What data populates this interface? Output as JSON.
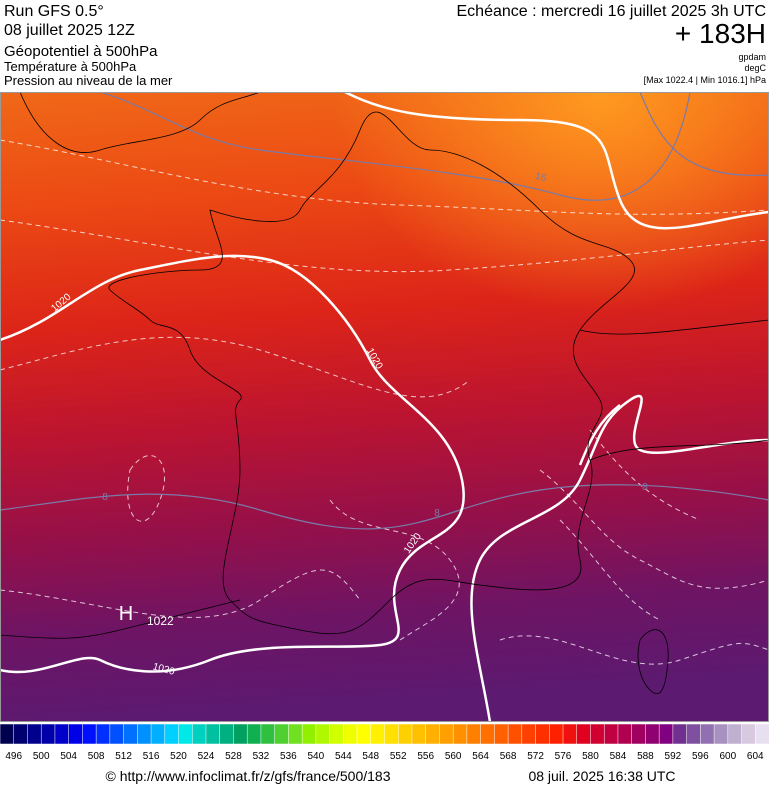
{
  "header": {
    "run": "Run GFS 0.5°",
    "date": "08 juillet 2025 12Z",
    "title": "Géopotentiel à 500hPa",
    "subtitle1": "Température à 500hPa",
    "subtitle2": "Pression au niveau de la mer",
    "echeance": "Echéance : mercredi 16 juillet 2025 3h UTC",
    "lead": "+ 183H",
    "unit1": "gpdam",
    "unit2": "degC",
    "range": "[Max 1022.4 | Min 1016.1] hPa"
  },
  "map": {
    "labels": [
      "1020",
      "1020",
      "1020",
      "1020",
      "16",
      "8",
      "8",
      "8",
      "H",
      "1022"
    ]
  },
  "colorbar": {
    "labels": [
      496,
      500,
      504,
      508,
      512,
      516,
      520,
      524,
      528,
      532,
      536,
      540,
      544,
      548,
      552,
      556,
      560,
      564,
      568,
      572,
      576,
      580,
      584,
      588,
      592,
      596,
      600,
      604
    ],
    "colors": [
      "#000050",
      "#00006e",
      "#00008c",
      "#0000aa",
      "#0000c8",
      "#0000e6",
      "#0010ff",
      "#0030ff",
      "#0050ff",
      "#0070ff",
      "#0090ff",
      "#00b0ff",
      "#00d0ff",
      "#00e8e8",
      "#00d0c0",
      "#00c0a0",
      "#00b080",
      "#00a060",
      "#10b050",
      "#30c040",
      "#50d030",
      "#70e020",
      "#90f000",
      "#b0f800",
      "#d0ff00",
      "#f0ff00",
      "#ffff00",
      "#fff000",
      "#ffe000",
      "#ffd000",
      "#ffc000",
      "#ffb000",
      "#ffa000",
      "#ff9000",
      "#ff8000",
      "#ff7000",
      "#ff6000",
      "#ff5000",
      "#ff4000",
      "#ff3000",
      "#ff2000",
      "#f01010",
      "#e00020",
      "#d00030",
      "#c00040",
      "#b00050",
      "#a00060",
      "#900070",
      "#800080",
      "#703090",
      "#8050a0",
      "#9070b0",
      "#a890c0",
      "#c0b0d0",
      "#d8c8e0",
      "#e8e0f0"
    ]
  },
  "footer": {
    "url": "© http://www.infoclimat.fr/z/gfs/france/500/183",
    "stamp": "08 juil. 2025 16:38 UTC"
  }
}
